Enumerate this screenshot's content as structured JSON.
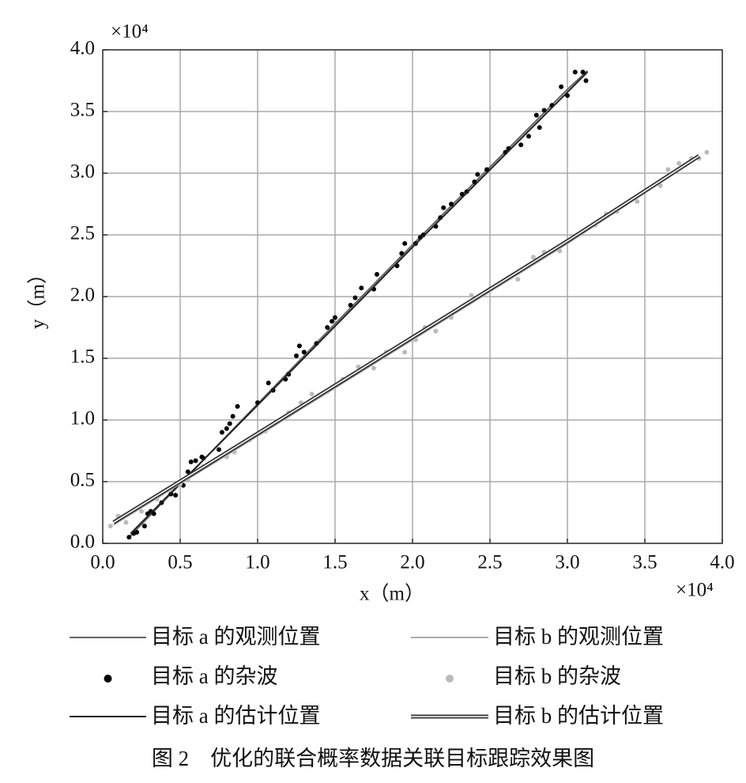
{
  "chart_data": {
    "type": "scatter",
    "x_label": "x（m）",
    "y_label": "y（m）",
    "x_multiplier": "×10⁴",
    "y_multiplier": "×10⁴",
    "caption": "图 2　优化的联合概率数据关联目标跟踪效果图",
    "xlim": [
      0,
      4
    ],
    "ylim": [
      0,
      4
    ],
    "xticks": [
      {
        "value": 0,
        "label": "0.0"
      },
      0.5,
      {
        "value": 1,
        "label": "1.0"
      },
      1.5,
      {
        "value": 2,
        "label": "2.0"
      },
      2.5,
      {
        "value": 3,
        "label": "3.0"
      },
      3.5,
      {
        "value": 4,
        "label": "4.0"
      }
    ],
    "yticks": [
      {
        "value": 0,
        "label": "0.0"
      },
      0.5,
      {
        "value": 1,
        "label": "1.0"
      },
      1.5,
      {
        "value": 2,
        "label": "2.0"
      },
      2.5,
      {
        "value": 3,
        "label": "3.0"
      },
      3.5,
      {
        "value": 4,
        "label": "4.0"
      }
    ],
    "grid": true,
    "series": [
      {
        "name": "目标 a 的观测位置",
        "style": "line",
        "color": "#666666",
        "x": [
          0.17,
          0.5,
          1.0,
          1.5,
          2.0,
          2.5,
          3.0,
          3.13
        ],
        "values": [
          0.05,
          0.48,
          1.13,
          1.78,
          2.42,
          3.05,
          3.68,
          3.83
        ]
      },
      {
        "name": "目标 a 的杂波",
        "style": "points",
        "color": "#000000",
        "x": [
          0.17,
          0.2,
          0.22,
          0.27,
          0.29,
          0.31,
          0.33,
          0.38,
          0.44,
          0.47,
          0.52,
          0.55,
          0.57,
          0.6,
          0.64,
          0.65,
          0.75,
          0.77,
          0.8,
          0.82,
          0.84,
          0.87,
          1.0,
          1.07,
          1.1,
          1.18,
          1.2,
          1.25,
          1.27,
          1.3,
          1.38,
          1.45,
          1.48,
          1.5,
          1.6,
          1.63,
          1.67,
          1.75,
          1.77,
          1.9,
          1.93,
          1.95,
          2.02,
          2.05,
          2.07,
          2.15,
          2.18,
          2.2,
          2.25,
          2.32,
          2.35,
          2.4,
          2.42,
          2.48,
          2.6,
          2.62,
          2.7,
          2.75,
          2.8,
          2.82,
          2.85,
          2.9,
          2.96,
          3.0,
          3.05,
          3.1,
          3.12
        ],
        "values": [
          0.05,
          0.08,
          0.09,
          0.14,
          0.24,
          0.26,
          0.24,
          0.33,
          0.4,
          0.39,
          0.47,
          0.58,
          0.66,
          0.67,
          0.7,
          0.69,
          0.76,
          0.9,
          0.93,
          0.97,
          1.03,
          1.11,
          1.14,
          1.3,
          1.24,
          1.33,
          1.37,
          1.52,
          1.6,
          1.55,
          1.62,
          1.75,
          1.8,
          1.83,
          1.93,
          1.99,
          2.07,
          2.06,
          2.18,
          2.25,
          2.35,
          2.43,
          2.43,
          2.48,
          2.5,
          2.57,
          2.64,
          2.72,
          2.75,
          2.83,
          2.85,
          2.93,
          2.99,
          3.03,
          3.17,
          3.2,
          3.23,
          3.3,
          3.47,
          3.37,
          3.51,
          3.55,
          3.7,
          3.63,
          3.82,
          3.82,
          3.75
        ]
      },
      {
        "name": "目标 a 的估计位置",
        "style": "line",
        "color": "#222222",
        "x": [
          0.18,
          1.0,
          2.0,
          3.13
        ],
        "values": [
          0.08,
          1.12,
          2.4,
          3.82
        ]
      },
      {
        "name": "目标 b 的观测位置",
        "style": "line",
        "color": "#aaaaaa",
        "x": [
          0.07,
          1.0,
          2.0,
          3.0,
          3.85
        ],
        "values": [
          0.15,
          0.87,
          1.65,
          2.43,
          3.13
        ]
      },
      {
        "name": "目标 b 的杂波",
        "style": "points",
        "color": "#bbbbbb",
        "x": [
          0.05,
          0.1,
          0.15,
          0.25,
          0.35,
          0.4,
          0.5,
          0.55,
          0.65,
          0.8,
          0.85,
          0.95,
          1.05,
          1.15,
          1.2,
          1.28,
          1.35,
          1.45,
          1.55,
          1.65,
          1.75,
          1.83,
          1.95,
          2.02,
          2.08,
          2.15,
          2.25,
          2.38,
          2.5,
          2.68,
          2.78,
          2.85,
          2.95,
          3.05,
          3.18,
          3.25,
          3.32,
          3.45,
          3.6,
          3.65,
          3.72,
          3.8,
          3.85,
          3.9
        ],
        "values": [
          0.14,
          0.22,
          0.17,
          0.26,
          0.36,
          0.42,
          0.48,
          0.52,
          0.62,
          0.7,
          0.74,
          0.84,
          0.91,
          1.0,
          1.06,
          1.14,
          1.21,
          1.23,
          1.33,
          1.43,
          1.42,
          1.55,
          1.55,
          1.65,
          1.75,
          1.72,
          1.83,
          2.01,
          2.06,
          2.14,
          2.32,
          2.36,
          2.37,
          2.49,
          2.58,
          2.67,
          2.69,
          2.77,
          2.9,
          3.03,
          3.08,
          3.12,
          3.12,
          3.17
        ]
      },
      {
        "name": "目标 b 的估计位置",
        "style": "double-line",
        "color": "#333333",
        "x": [
          0.07,
          1.0,
          2.0,
          3.0,
          3.85
        ],
        "values": [
          0.17,
          0.89,
          1.67,
          2.45,
          3.14
        ]
      }
    ]
  }
}
